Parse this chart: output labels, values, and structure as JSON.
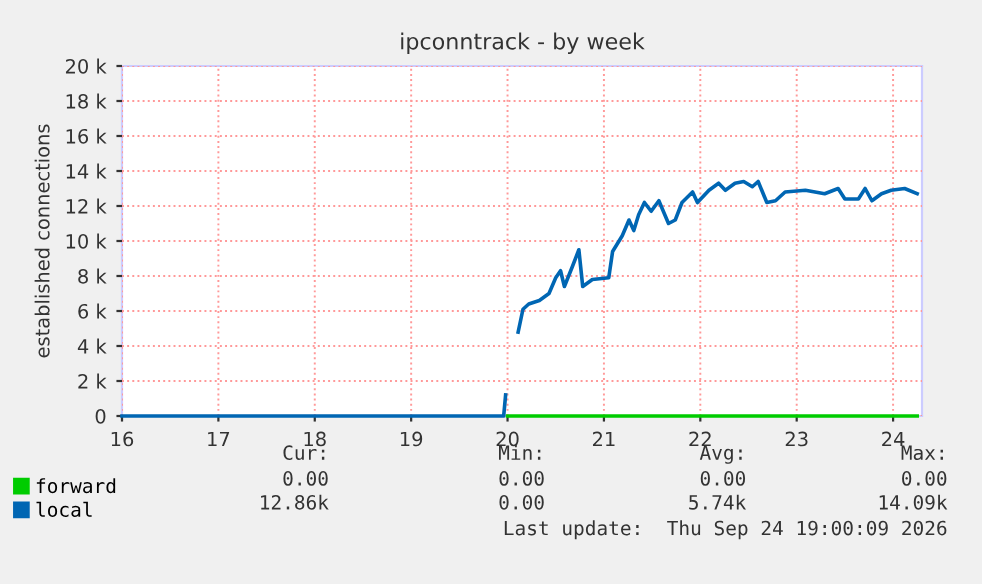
{
  "chart_data": {
    "type": "line",
    "title": "ipconntrack - by week",
    "ylabel": "established connections",
    "xlim": [
      16,
      24.3
    ],
    "xticks": [
      16,
      17,
      18,
      19,
      20,
      21,
      22,
      23,
      24
    ],
    "ylim": [
      0,
      20000
    ],
    "yticks": [
      0,
      {
        "value": 2000,
        "label": "2 k"
      },
      {
        "value": 4000,
        "label": "4 k"
      },
      {
        "value": 6000,
        "label": "6 k"
      },
      {
        "value": 8000,
        "label": "8 k"
      },
      {
        "value": 10000,
        "label": "10 k"
      },
      {
        "value": 12000,
        "label": "12 k"
      },
      {
        "value": 14000,
        "label": "14 k"
      },
      {
        "value": 16000,
        "label": "16 k"
      },
      {
        "value": 18000,
        "label": "18 k"
      },
      {
        "value": 20000,
        "label": "20 k"
      }
    ],
    "grid": true,
    "legend": "bottom left",
    "series": [
      {
        "name": "forward",
        "color": "#00cc00",
        "x": [
          20,
          24.25
        ],
        "values": [
          0,
          0
        ]
      },
      {
        "name": "local",
        "color": "#0066b3",
        "x": [
          16,
          19.96,
          19.98,
          20.05,
          20.11,
          20.16,
          20.22,
          20.33,
          20.43,
          20.5,
          20.55,
          20.59,
          20.67,
          20.74,
          20.78,
          20.88,
          21.05,
          21.09,
          21.19,
          21.26,
          21.31,
          21.36,
          21.42,
          21.49,
          21.57,
          21.67,
          21.74,
          21.81,
          21.92,
          21.97,
          22.09,
          22.19,
          22.26,
          22.36,
          22.45,
          22.54,
          22.6,
          22.69,
          22.78,
          22.88,
          23.09,
          23.29,
          23.43,
          23.5,
          23.64,
          23.71,
          23.78,
          23.88,
          23.98,
          24.12,
          24.25
        ],
        "values": [
          0,
          0,
          1200,
          null,
          4800,
          6100,
          6400,
          6600,
          7000,
          7900,
          8300,
          7400,
          8500,
          9500,
          7400,
          7800,
          7900,
          9400,
          10300,
          11200,
          10600,
          11500,
          12200,
          11700,
          12300,
          11000,
          11200,
          12200,
          12800,
          12200,
          12900,
          13300,
          12900,
          13300,
          13400,
          13100,
          13400,
          12200,
          12300,
          12800,
          12900,
          12700,
          13000,
          12400,
          12400,
          13000,
          12300,
          12700,
          12900,
          13000,
          12700
        ]
      }
    ],
    "annotations": [
      "Cur:",
      "Min:",
      "Avg:",
      "Max:",
      "0.00",
      "0.00",
      "0.00",
      "0.00",
      "12.86k",
      "0.00",
      "5.74k",
      "14.09k",
      "Last update:  Thu Sep 24 19:00:09 2026"
    ]
  }
}
